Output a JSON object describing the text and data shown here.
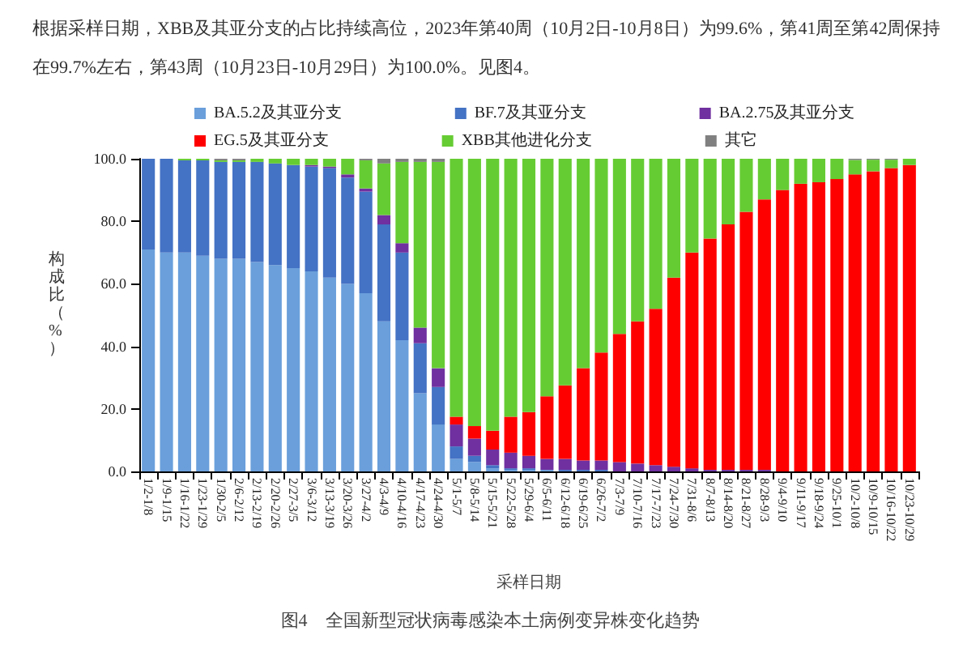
{
  "chart_data": {
    "type": "bar",
    "stacked": true,
    "xlabel": "采样日期",
    "ylabel": "构成比（%）",
    "annotations": [
      "根据采样日期，XBB及其亚分支的占比持续高位，2023年第40周（10月2日-10月8日）为99.6%，第41周至第42周保持在99.7%左右，第43周（10月23日-10月29日）为100.0%。见图4。",
      "图4　全国新型冠状病毒感染本土病例变异株变化趋势"
    ],
    "categories": [
      "1/2-1/8",
      "1/9-1/15",
      "1/16-1/22",
      "1/23-1/29",
      "1/30-2/5",
      "2/6-2/12",
      "2/13-2/19",
      "2/20-2/26",
      "2/27-3/5",
      "3/6-3/12",
      "3/13-3/19",
      "3/20-3/26",
      "3/27-4/2",
      "4/3-4/9",
      "4/10-4/16",
      "4/17-4/23",
      "4/24-4/30",
      "5/1-5/7",
      "5/8-5/14",
      "5/15-5/21",
      "5/22-5/28",
      "5/29-6/4",
      "6/5-6/11",
      "6/12-6/18",
      "6/19-6/25",
      "6/26-7/2",
      "7/3-7/9",
      "7/10-7/16",
      "7/17-7/23",
      "7/24-7/30",
      "7/31-8/6",
      "8/7-8/13",
      "8/14-8/20",
      "8/21-8/27",
      "8/28-9/3",
      "9/4-9/10",
      "9/11-9/17",
      "9/18-9/24",
      "9/25-10/1",
      "10/2-10/8",
      "10/9-10/15",
      "10/16-10/22",
      "10/23-10/29"
    ],
    "ylim": [
      0,
      100
    ],
    "yticks": [
      {
        "value": 0,
        "label": "0.0"
      },
      {
        "value": 20,
        "label": "20.0"
      },
      {
        "value": 40,
        "label": "40.0"
      },
      {
        "value": 60,
        "label": "60.0"
      },
      {
        "value": 80,
        "label": "80.0"
      },
      {
        "value": 100,
        "label": "100.0"
      }
    ],
    "grid": false,
    "legend": "top",
    "series": [
      {
        "name": "BA.5.2及其亚分支",
        "color": "#6a9fdb",
        "values": [
          71,
          70,
          70,
          69,
          68,
          68,
          67,
          66,
          65,
          64,
          62,
          60,
          57,
          48,
          42,
          25,
          15,
          4,
          3,
          1,
          0.5,
          0.5,
          0.5,
          0,
          0,
          0,
          0,
          0,
          0,
          0,
          0,
          0,
          0,
          0,
          0,
          0,
          0,
          0,
          0,
          0,
          0,
          0,
          0
        ]
      },
      {
        "name": "BF.7及其亚分支",
        "color": "#4472c4",
        "values": [
          29,
          30,
          29.5,
          30.5,
          31,
          31,
          32,
          32.5,
          33,
          33.5,
          35,
          34,
          32.5,
          31,
          28,
          16,
          12,
          4,
          2,
          1,
          0.5,
          0.5,
          0,
          0.5,
          0.5,
          0.5,
          0,
          0,
          0,
          0,
          0,
          0,
          0,
          0,
          0,
          0,
          0,
          0,
          0,
          0,
          0,
          0,
          0
        ]
      },
      {
        "name": "BA.2.75及其亚分支",
        "color": "#7030a0",
        "values": [
          0,
          0,
          0,
          0,
          0,
          0,
          0,
          0,
          0,
          0.5,
          0.5,
          1,
          1,
          3,
          3,
          5,
          6,
          7,
          5.5,
          5,
          5,
          4,
          3.5,
          3.5,
          3,
          3,
          3,
          2.5,
          2,
          1.5,
          1,
          0.5,
          0.5,
          0.5,
          0.5,
          0,
          0,
          0,
          0,
          0,
          0,
          0,
          0
        ]
      },
      {
        "name": "EG.5及其亚分支",
        "color": "#ff0000",
        "values": [
          0,
          0,
          0,
          0,
          0,
          0,
          0,
          0,
          0,
          0,
          0,
          0,
          0,
          0,
          0,
          0,
          0,
          2.5,
          4,
          6,
          11.5,
          14,
          20,
          23.5,
          29.5,
          34.5,
          41,
          45.5,
          50,
          60.5,
          69,
          74,
          78.5,
          82.5,
          86.5,
          90,
          92,
          92.5,
          93.5,
          95,
          96,
          97,
          98
        ]
      },
      {
        "name": "XBB其他进化分支",
        "color": "#66cc33",
        "values": [
          0,
          0,
          0.5,
          0.5,
          0.5,
          0.5,
          1,
          1.5,
          2,
          2,
          2.5,
          5,
          9,
          16.5,
          26,
          53,
          66,
          82.5,
          85.5,
          87,
          82.5,
          81,
          76,
          72.5,
          67,
          62,
          56,
          52,
          48,
          38,
          30,
          25.5,
          21,
          17,
          13,
          10,
          8,
          7.5,
          6.5,
          4.6,
          3.7,
          2.7,
          2
        ]
      },
      {
        "name": "其它",
        "color": "#808080",
        "values": [
          0,
          0,
          0,
          0,
          0.5,
          0.5,
          0,
          0,
          0,
          0,
          0,
          0,
          0.5,
          1.5,
          1,
          1,
          1,
          0,
          0,
          0,
          0,
          0,
          0,
          0,
          0,
          0,
          0,
          0,
          0,
          0,
          0,
          0,
          0,
          0,
          0,
          0,
          0,
          0,
          0,
          0.4,
          0.3,
          0.3,
          0
        ]
      }
    ]
  }
}
